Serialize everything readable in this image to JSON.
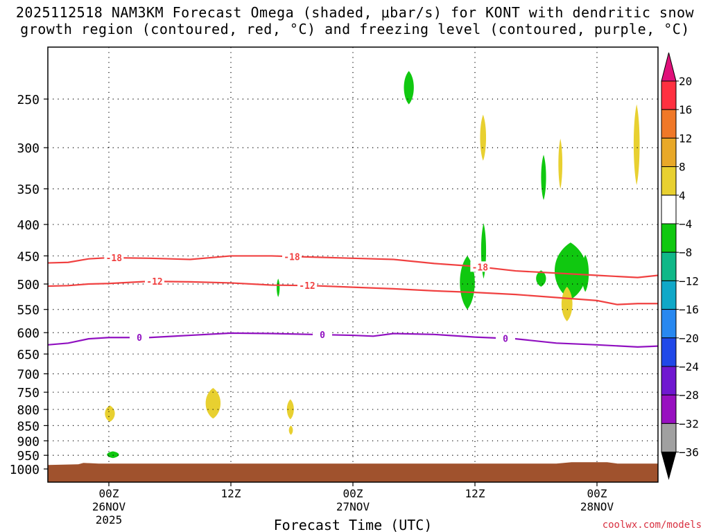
{
  "title": {
    "line1": "2025112518 NAM3KM Forecast Omega (shaded, μbar/s) for KONT with dendritic snow",
    "line2": "growth region (contoured, red, °C) and freezing level (contoured, purple, °C)"
  },
  "credit": "coolwx.com/models",
  "chart_data": {
    "type": "time-height cross section",
    "xlabel": "Forecast Time (UTC)",
    "x_axis_unit": "forecast hour",
    "xlim": [
      -6,
      54
    ],
    "x_ticks": [
      {
        "hour": 0,
        "lines": [
          "00Z",
          "26NOV",
          "2025"
        ]
      },
      {
        "hour": 12,
        "lines": [
          "12Z"
        ]
      },
      {
        "hour": 24,
        "lines": [
          "00Z",
          "27NOV"
        ]
      },
      {
        "hour": 36,
        "lines": [
          "12Z"
        ]
      },
      {
        "hour": 48,
        "lines": [
          "00Z",
          "28NOV"
        ]
      }
    ],
    "y_axis_unit": "hPa",
    "ylim": [
      1050,
      200
    ],
    "y_scale": "log",
    "y_ticks": [
      250,
      300,
      350,
      400,
      450,
      500,
      550,
      600,
      650,
      700,
      750,
      800,
      850,
      900,
      950,
      1000
    ],
    "grid": "dotted horizontal at pressure ticks, dotted vertical at time ticks",
    "colorbar": {
      "unit": "μbar/s",
      "labels": [
        "20",
        "16",
        "12",
        "8",
        "4",
        "−4",
        "−8",
        "−12",
        "−16",
        "−20",
        "−24",
        "−28",
        "−32",
        "−36"
      ],
      "colors": [
        "#ff3040",
        "#f07828",
        "#e8a828",
        "#e8d030",
        "#ffffff",
        "#10c810",
        "#10b888",
        "#10a8c8",
        "#2888f0",
        "#2048e8",
        "#7018d0",
        "#9810c0",
        "#a0a0a0"
      ],
      "top_arrow": "#e0107a",
      "bottom_arrow": "#000000"
    },
    "contours": [
      {
        "label": "-18",
        "color": "#f04040",
        "points": [
          [
            -6,
            462
          ],
          [
            -4,
            461
          ],
          [
            -2,
            455
          ],
          [
            0,
            453
          ],
          [
            4,
            454
          ],
          [
            8,
            456
          ],
          [
            12,
            450
          ],
          [
            16,
            450
          ],
          [
            20,
            452
          ],
          [
            24,
            454
          ],
          [
            28,
            456
          ],
          [
            32,
            463
          ],
          [
            36,
            468
          ],
          [
            40,
            476
          ],
          [
            44,
            480
          ],
          [
            48,
            484
          ],
          [
            52,
            488
          ],
          [
            54,
            484
          ]
        ],
        "label_hours": [
          0.5,
          18,
          36.5
        ]
      },
      {
        "label": "-12",
        "color": "#f04040",
        "points": [
          [
            -6,
            504
          ],
          [
            -4,
            503
          ],
          [
            -2,
            500
          ],
          [
            0,
            499
          ],
          [
            4,
            495
          ],
          [
            8,
            496
          ],
          [
            12,
            498
          ],
          [
            16,
            502
          ],
          [
            20,
            503
          ],
          [
            24,
            506
          ],
          [
            28,
            509
          ],
          [
            32,
            513
          ],
          [
            36,
            516
          ],
          [
            40,
            520
          ],
          [
            44,
            526
          ],
          [
            48,
            532
          ],
          [
            50,
            540
          ],
          [
            52,
            538
          ],
          [
            54,
            538
          ]
        ],
        "label_hours": [
          4.5,
          19.5
        ]
      },
      {
        "label": "0",
        "color": "#9010c0",
        "points": [
          [
            -6,
            628
          ],
          [
            -4,
            624
          ],
          [
            -2,
            614
          ],
          [
            0,
            611
          ],
          [
            4,
            611
          ],
          [
            8,
            606
          ],
          [
            12,
            601
          ],
          [
            16,
            602
          ],
          [
            20,
            604
          ],
          [
            24,
            606
          ],
          [
            26,
            608
          ],
          [
            28,
            602
          ],
          [
            32,
            604
          ],
          [
            36,
            610
          ],
          [
            40,
            614
          ],
          [
            44,
            624
          ],
          [
            48,
            628
          ],
          [
            52,
            633
          ],
          [
            54,
            631
          ]
        ],
        "label_hours": [
          3,
          21,
          39
        ]
      }
    ],
    "shaded_regions": [
      {
        "value_bin": "-8 to -4",
        "color": "#10c810",
        "hours": [
          29,
          30
        ],
        "pressure_hpa": [
          225,
          255
        ]
      },
      {
        "value_bin": "-8 to -4",
        "color": "#10c810",
        "hours": [
          16.5,
          16.8
        ],
        "pressure_hpa": [
          490,
          525
        ]
      },
      {
        "value_bin": "-8 to -4",
        "color": "#10c810",
        "hours": [
          34.5,
          36
        ],
        "pressure_hpa": [
          450,
          550
        ]
      },
      {
        "value_bin": "-8 to -4",
        "color": "#10c810",
        "hours": [
          36.6,
          37.1
        ],
        "pressure_hpa": [
          398,
          490
        ]
      },
      {
        "value_bin": "-8 to -4",
        "color": "#10c810",
        "hours": [
          42,
          43
        ],
        "pressure_hpa": [
          475,
          505
        ]
      },
      {
        "value_bin": "-8 to -4",
        "color": "#10c810",
        "hours": [
          42.5,
          43
        ],
        "pressure_hpa": [
          308,
          365
        ]
      },
      {
        "value_bin": "-8 to -4",
        "color": "#10c810",
        "hours": [
          43.8,
          47
        ],
        "pressure_hpa": [
          428,
          530
        ]
      },
      {
        "value_bin": "-8 to -4",
        "color": "#10c810",
        "hours": [
          46.5,
          47.2
        ],
        "pressure_hpa": [
          448,
          515
        ]
      },
      {
        "value_bin": "-8 to -4",
        "color": "#10c810",
        "hours": [
          -0.2,
          1
        ],
        "pressure_hpa": [
          936,
          960
        ]
      },
      {
        "value_bin": "4 to 8",
        "color": "#e8d030",
        "hours": [
          36.5,
          37.1
        ],
        "pressure_hpa": [
          265,
          315
        ]
      },
      {
        "value_bin": "4 to 8",
        "color": "#e8d030",
        "hours": [
          44.2,
          44.6
        ],
        "pressure_hpa": [
          290,
          350
        ]
      },
      {
        "value_bin": "4 to 8",
        "color": "#e8d030",
        "hours": [
          44.5,
          45.6
        ],
        "pressure_hpa": [
          505,
          575
        ]
      },
      {
        "value_bin": "4 to 8",
        "color": "#e8d030",
        "hours": [
          51.6,
          52.2
        ],
        "pressure_hpa": [
          255,
          345
        ]
      },
      {
        "value_bin": "4 to 8",
        "color": "#e8d030",
        "hours": [
          9.5,
          11
        ],
        "pressure_hpa": [
          738,
          828
        ]
      },
      {
        "value_bin": "4 to 8",
        "color": "#e8d030",
        "hours": [
          17.5,
          18.2
        ],
        "pressure_hpa": [
          770,
          830
        ]
      },
      {
        "value_bin": "4 to 8",
        "color": "#e8d030",
        "hours": [
          17.7,
          18.1
        ],
        "pressure_hpa": [
          850,
          880
        ]
      },
      {
        "value_bin": "4 to 8",
        "color": "#e8d030",
        "hours": [
          -0.4,
          0.6
        ],
        "pressure_hpa": [
          788,
          838
        ]
      }
    ],
    "terrain": {
      "color": "#a0522d",
      "surface_hpa": 980
    }
  }
}
